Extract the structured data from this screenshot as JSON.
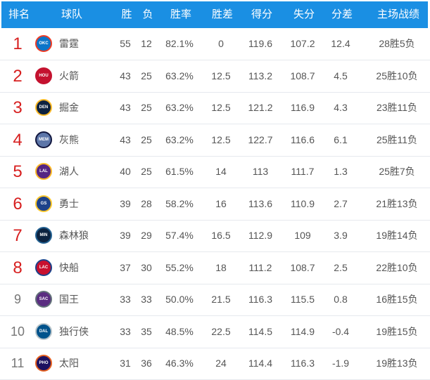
{
  "header": {
    "rank": "排名",
    "team": "球队",
    "wins": "胜",
    "losses": "负",
    "pct": "胜率",
    "gb": "胜差",
    "pts": "得分",
    "opp": "失分",
    "diff": "分差",
    "home": "主场战绩"
  },
  "colors": {
    "header_bg": "#1a8fe3",
    "rank_highlight": "#d71f1f"
  },
  "rows": [
    {
      "rank": "1",
      "team": "雷霆",
      "logo": "OKC",
      "logo_colors": [
        "#0b75c9",
        "#ef3b24"
      ],
      "wins": "55",
      "losses": "12",
      "pct": "82.1%",
      "gb": "0",
      "pts": "119.6",
      "opp": "107.2",
      "diff": "12.4",
      "home": "28胜5负"
    },
    {
      "rank": "2",
      "team": "火箭",
      "logo": "HOU",
      "logo_colors": [
        "#c4122f",
        "#c4122f"
      ],
      "wins": "43",
      "losses": "25",
      "pct": "63.2%",
      "gb": "12.5",
      "pts": "113.2",
      "opp": "108.7",
      "diff": "4.5",
      "home": "25胜10负"
    },
    {
      "rank": "3",
      "team": "掘金",
      "logo": "DEN",
      "logo_colors": [
        "#0d2240",
        "#fdb927"
      ],
      "wins": "43",
      "losses": "25",
      "pct": "63.2%",
      "gb": "12.5",
      "pts": "121.2",
      "opp": "116.9",
      "diff": "4.3",
      "home": "23胜11负"
    },
    {
      "rank": "4",
      "team": "灰熊",
      "logo": "MEM",
      "logo_colors": [
        "#5d76a9",
        "#12173f"
      ],
      "wins": "43",
      "losses": "25",
      "pct": "63.2%",
      "gb": "12.5",
      "pts": "122.7",
      "opp": "116.6",
      "diff": "6.1",
      "home": "25胜11负"
    },
    {
      "rank": "5",
      "team": "湖人",
      "logo": "LAL",
      "logo_colors": [
        "#552583",
        "#fdb927"
      ],
      "wins": "40",
      "losses": "25",
      "pct": "61.5%",
      "gb": "14",
      "pts": "113",
      "opp": "111.7",
      "diff": "1.3",
      "home": "25胜7负"
    },
    {
      "rank": "6",
      "team": "勇士",
      "logo": "GS",
      "logo_colors": [
        "#1d428a",
        "#ffc72c"
      ],
      "wins": "39",
      "losses": "28",
      "pct": "58.2%",
      "gb": "16",
      "pts": "113.6",
      "opp": "110.9",
      "diff": "2.7",
      "home": "21胜13负"
    },
    {
      "rank": "7",
      "team": "森林狼",
      "logo": "MIN",
      "logo_colors": [
        "#0c2340",
        "#236192"
      ],
      "wins": "39",
      "losses": "29",
      "pct": "57.4%",
      "gb": "16.5",
      "pts": "112.9",
      "opp": "109",
      "diff": "3.9",
      "home": "19胜14负"
    },
    {
      "rank": "8",
      "team": "快船",
      "logo": "LAC",
      "logo_colors": [
        "#c8102e",
        "#1d428a"
      ],
      "wins": "37",
      "losses": "30",
      "pct": "55.2%",
      "gb": "18",
      "pts": "111.2",
      "opp": "108.7",
      "diff": "2.5",
      "home": "22胜10负"
    },
    {
      "rank": "9",
      "team": "国王",
      "logo": "SAC",
      "logo_colors": [
        "#5a2d81",
        "#63727a"
      ],
      "wins": "33",
      "losses": "33",
      "pct": "50.0%",
      "gb": "21.5",
      "pts": "116.3",
      "opp": "115.5",
      "diff": "0.8",
      "home": "16胜15负"
    },
    {
      "rank": "10",
      "team": "独行侠",
      "logo": "DAL",
      "logo_colors": [
        "#00538c",
        "#b8c4ca"
      ],
      "wins": "33",
      "losses": "35",
      "pct": "48.5%",
      "gb": "22.5",
      "pts": "114.5",
      "opp": "114.9",
      "diff": "-0.4",
      "home": "19胜15负"
    },
    {
      "rank": "11",
      "team": "太阳",
      "logo": "PHO",
      "logo_colors": [
        "#1d1160",
        "#e56020"
      ],
      "wins": "31",
      "losses": "36",
      "pct": "46.3%",
      "gb": "24",
      "pts": "114.4",
      "opp": "116.3",
      "diff": "-1.9",
      "home": "19胜13负"
    }
  ]
}
